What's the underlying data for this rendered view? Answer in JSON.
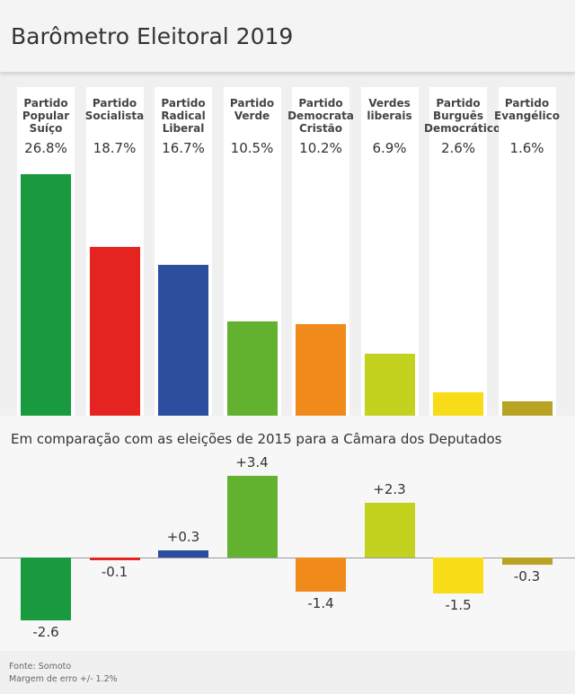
{
  "chart_data": [
    {
      "type": "bar",
      "title": "Barômetro Eleitoral 2019",
      "categories": [
        "Partido\nPopular\nSuíço",
        "Partido\nSocialista",
        "Partido\nRadical\nLiberal",
        "Partido\nVerde",
        "Partido\nDemocrata\nCristão",
        "Verdes\nliberais",
        "Partido\nBurguês\nDemocrático",
        "Partido\nEvangélico"
      ],
      "values": [
        26.8,
        18.7,
        16.7,
        10.5,
        10.2,
        6.9,
        2.6,
        1.6
      ],
      "value_labels": [
        "26.8%",
        "18.7%",
        "16.7%",
        "10.5%",
        "10.2%",
        "6.9%",
        "2.6%",
        "1.6%"
      ],
      "colors": [
        "#1a9a3f",
        "#e52421",
        "#2b4f9e",
        "#63b22f",
        "#f08a1b",
        "#c3d21f",
        "#f7dc17",
        "#b8a324"
      ],
      "ylim": [
        0,
        27
      ]
    },
    {
      "type": "diverging-bar",
      "title": "Em comparação com as eleições de 2015 para a Câmara dos Deputados",
      "values": [
        -2.6,
        -0.1,
        0.3,
        3.4,
        -1.4,
        2.3,
        -1.5,
        -0.3
      ],
      "value_labels": [
        "-2.6",
        "-0.1",
        "+0.3",
        "+3.4",
        "-1.4",
        "+2.3",
        "-1.5",
        "-0.3"
      ],
      "colors": [
        "#1a9a3f",
        "#e52421",
        "#2b4f9e",
        "#63b22f",
        "#f08a1b",
        "#c3d21f",
        "#f7dc17",
        "#b8a324"
      ],
      "ylim": [
        -2.6,
        3.4
      ]
    }
  ],
  "footer": {
    "source": "Fonte: Somoto",
    "margin": "Margem de erro +/- 1.2%"
  }
}
